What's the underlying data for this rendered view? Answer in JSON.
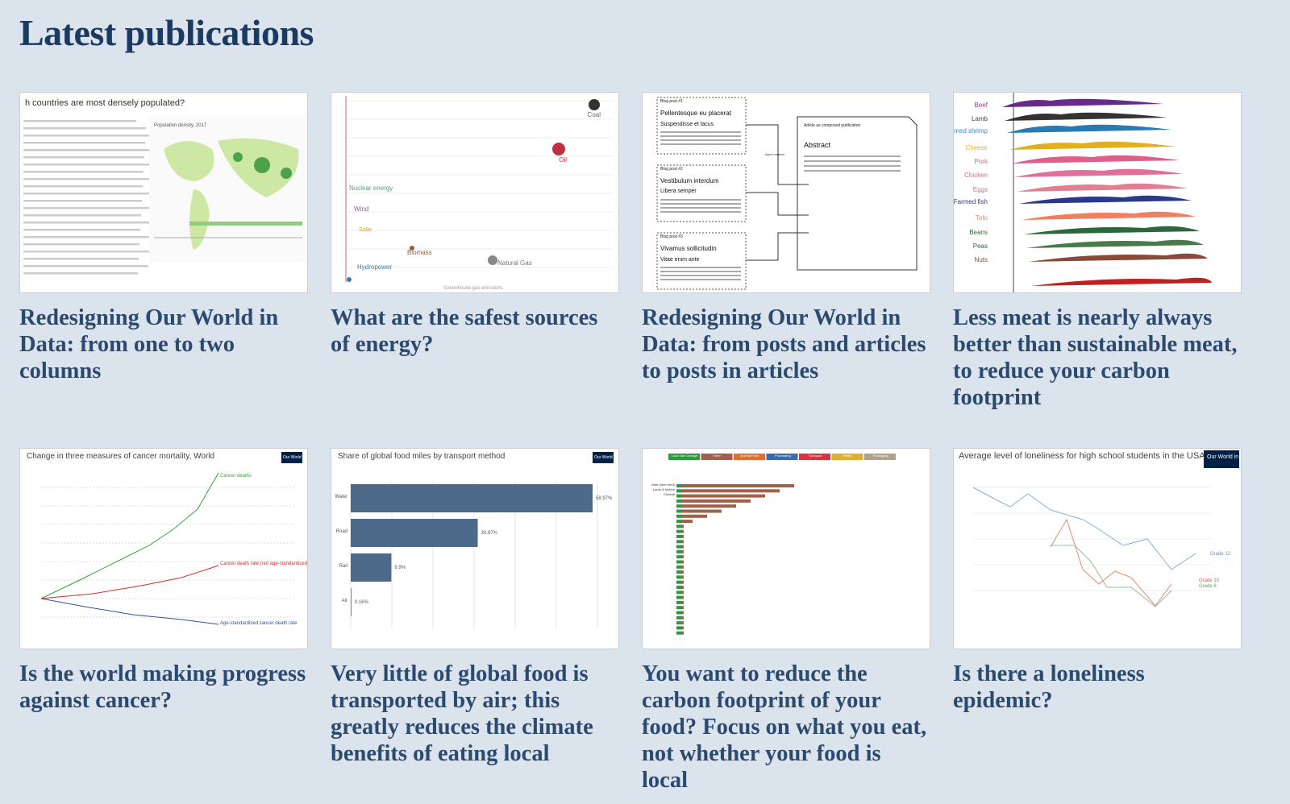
{
  "header": {
    "title": "Latest publications"
  },
  "publications": [
    {
      "title": "Redesigning Our World in Data: from one to two columns",
      "thumbnail": {
        "texts": [
          "h countries are most densely populated?",
          "Population density, 2017"
        ]
      }
    },
    {
      "title": "What are the safest sources of energy?",
      "thumbnail": {
        "texts": [
          "Coal",
          "Oil",
          "Nuclear energy",
          "Wind",
          "Solar",
          "Biomass",
          "Hydropower",
          "Natural Gas",
          "Greenhouse gas emissions"
        ]
      }
    },
    {
      "title": "Redesigning Our World in Data: from posts and articles to posts in articles",
      "thumbnail": {
        "texts": [
          "Blog post #1",
          "Pellentesque eu placerat",
          "Suspendisse et lacus",
          "Blog post #2",
          "Vestibulum interdum",
          "Libera semper",
          "Blog post #3",
          "Vivamus sollicitudin",
          "Vitae enim ante",
          "Article as composed publication",
          "Abstract",
          "Inject content"
        ]
      }
    },
    {
      "title": "Less meat is nearly always better than sustainable meat, to reduce your carbon footprint",
      "thumbnail": {
        "texts": [
          "Beef",
          "Lamb",
          "Farmed shrimp",
          "Cheese",
          "Pork",
          "Chicken",
          "Eggs",
          "Farmed fish",
          "Tofu",
          "Beans",
          "Peas",
          "Nuts"
        ]
      }
    },
    {
      "title": "Is the world making progress against cancer?",
      "thumbnail": {
        "texts": [
          "Change in three measures of cancer mortality, World",
          "Cancer deaths",
          "Cancer death rate (not age-standardized)",
          "Age-standardized cancer death rate",
          "Our World in Data"
        ]
      }
    },
    {
      "title": "Very little of global food is transported by air; this greatly reduces the climate benefits of eating local",
      "thumbnail": {
        "texts": [
          "Share of global food miles by transport method",
          "Our World in Data"
        ],
        "bars": [
          {
            "label": "Water",
            "value": 58.97,
            "value_label": "58.97%"
          },
          {
            "label": "Road",
            "value": 30.97,
            "value_label": "30.97%"
          },
          {
            "label": "Rail",
            "value": 9.9,
            "value_label": "9.9%"
          },
          {
            "label": "Air",
            "value": 0.16,
            "value_label": "0.16%"
          }
        ]
      }
    },
    {
      "title": "You want to reduce the carbon footprint of your food? Focus on what you eat, not whether your food is local",
      "thumbnail": {
        "texts": [
          "Land Use Change",
          "Farm",
          "Animal Feed",
          "Processing",
          "Transport",
          "Retail",
          "Packaging",
          "Beef (beef herd)",
          "Lamb & Mutton",
          "Cheese"
        ]
      }
    },
    {
      "title": "Is there a loneliness epidemic?",
      "thumbnail": {
        "texts": [
          "Average level of loneliness for high school students in the USA",
          "Grade 12",
          "Grade 10",
          "Grade 8",
          "Our World in Data"
        ]
      }
    }
  ]
}
